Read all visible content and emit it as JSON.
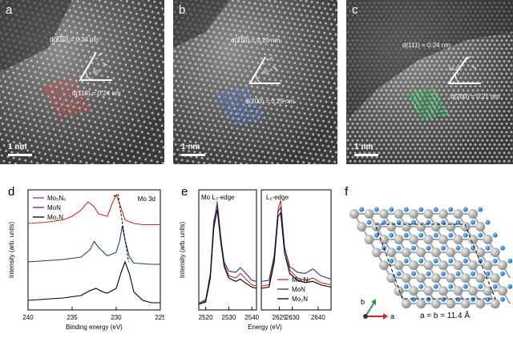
{
  "panels": {
    "a": {
      "label": "a",
      "d1": "d(2̅1̅0) = 0.24 nm",
      "d2": "d(110) = 0.24 nm",
      "angle": "60°",
      "scale": "1 nm",
      "color": "#ff3b3b"
    },
    "b": {
      "label": "b",
      "d1": "d(2̅1̅0) = 0.25 nm",
      "d2": "d(200) = 0.25 nm",
      "angle": "60°",
      "scale": "1 nm",
      "color": "#3f7fff"
    },
    "c": {
      "label": "c",
      "d1": "d(111) = 0.24 nm",
      "d2": "d(200) = 0.21 nm",
      "angle": "54.7°",
      "scale": "1 nm",
      "color": "#22dd66"
    },
    "d": {
      "label": "d"
    },
    "e": {
      "label": "e"
    },
    "f": {
      "label": "f"
    }
  },
  "chart_data": [
    {
      "type": "line",
      "panel": "d",
      "xlabel": "Binding energy (eV)",
      "ylabel": "Intensity (arb. units)",
      "xlim": [
        240,
        225
      ],
      "xticks": [
        240,
        235,
        230,
        225
      ],
      "annotation": "Mo 3d",
      "legend": [
        "Mo₅N₆",
        "MoN",
        "Mo₂N"
      ],
      "series": [
        {
          "name": "Mo₅N₆",
          "color": "#d62728",
          "x": [
            240,
            238,
            236,
            235,
            234,
            233.2,
            232.5,
            232,
            231,
            230.5,
            230,
            229.6,
            229,
            228,
            227,
            225
          ],
          "y": [
            0.72,
            0.73,
            0.75,
            0.78,
            0.83,
            0.9,
            0.86,
            0.8,
            0.78,
            0.88,
            0.96,
            0.88,
            0.75,
            0.72,
            0.71,
            0.71
          ]
        },
        {
          "name": "MoN",
          "color": "#1f3c88",
          "x": [
            240,
            238,
            236,
            234,
            233,
            232.5,
            232,
            231,
            230,
            229.6,
            229.3,
            229,
            228.5,
            228,
            226,
            225
          ],
          "y": [
            0.4,
            0.41,
            0.42,
            0.44,
            0.5,
            0.57,
            0.52,
            0.45,
            0.48,
            0.58,
            0.7,
            0.58,
            0.44,
            0.39,
            0.38,
            0.38
          ]
        },
        {
          "name": "Mo₂N",
          "color": "#000000",
          "x": [
            240,
            238,
            236,
            234,
            233,
            232.3,
            231.5,
            231,
            230,
            229.5,
            229,
            228.5,
            228,
            227,
            226,
            225
          ],
          "y": [
            0.08,
            0.09,
            0.1,
            0.12,
            0.16,
            0.18,
            0.15,
            0.14,
            0.18,
            0.3,
            0.4,
            0.3,
            0.15,
            0.08,
            0.06,
            0.06
          ]
        }
      ]
    },
    {
      "type": "line",
      "panel": "e",
      "xlabel": "Energy (eV)",
      "ylabel": "Intensity (arb. units)",
      "xticks_left": [
        2520,
        2530,
        2540
      ],
      "xticks_right": [
        2625,
        2630,
        2640
      ],
      "xlim_left": [
        2517,
        2542
      ],
      "xlim_right": [
        2618,
        2645
      ],
      "edge_left": "Mo L₃-edge",
      "edge_right": "L₂-edge",
      "legend": [
        "Mo₅N₆",
        "MoN",
        "Mo₂N"
      ],
      "series": [
        {
          "name": "Mo₅N₆",
          "color": "#d62728",
          "left": {
            "x": [
              2517,
              2520,
              2522,
              2523.5,
              2525,
              2526.5,
              2528,
              2530,
              2533,
              2535,
              2537,
              2540,
              2542
            ],
            "y": [
              0.05,
              0.08,
              0.3,
              0.75,
              0.95,
              0.65,
              0.4,
              0.3,
              0.28,
              0.32,
              0.28,
              0.22,
              0.21
            ]
          },
          "right": {
            "x": [
              2618,
              2621,
              2623,
              2624.5,
              2625.5,
              2627,
              2629,
              2632,
              2635,
              2638,
              2641,
              2645
            ],
            "y": [
              0.21,
              0.22,
              0.45,
              0.88,
              0.96,
              0.55,
              0.35,
              0.28,
              0.26,
              0.28,
              0.24,
              0.22
            ]
          }
        },
        {
          "name": "MoN",
          "color": "#1f3c88",
          "left": {
            "x": [
              2517,
              2520,
              2522,
              2523.5,
              2525,
              2526.5,
              2528,
              2530,
              2533,
              2535,
              2537,
              2540,
              2542
            ],
            "y": [
              0.06,
              0.09,
              0.32,
              0.78,
              0.92,
              0.62,
              0.42,
              0.34,
              0.33,
              0.37,
              0.33,
              0.26,
              0.25
            ]
          },
          "right": {
            "x": [
              2618,
              2621,
              2623,
              2624.5,
              2625.5,
              2627,
              2629,
              2632,
              2635,
              2638,
              2641,
              2645
            ],
            "y": [
              0.25,
              0.26,
              0.48,
              0.86,
              0.9,
              0.55,
              0.38,
              0.33,
              0.32,
              0.36,
              0.3,
              0.27
            ]
          }
        },
        {
          "name": "Mo₂N",
          "color": "#000000",
          "left": {
            "x": [
              2517,
              2520,
              2522,
              2523.5,
              2525,
              2526.5,
              2528,
              2530,
              2533,
              2535,
              2537,
              2540,
              2542
            ],
            "y": [
              0.05,
              0.07,
              0.28,
              0.72,
              0.88,
              0.6,
              0.38,
              0.28,
              0.25,
              0.27,
              0.24,
              0.2,
              0.19
            ]
          },
          "right": {
            "x": [
              2618,
              2621,
              2623,
              2624.5,
              2625.5,
              2627,
              2629,
              2632,
              2635,
              2638,
              2641,
              2645
            ],
            "y": [
              0.19,
              0.2,
              0.42,
              0.82,
              0.85,
              0.5,
              0.32,
              0.26,
              0.24,
              0.25,
              0.22,
              0.2
            ]
          }
        }
      ]
    }
  ],
  "structure": {
    "caption": "a = b = 11.4 Å",
    "axis_a": "a",
    "axis_b": "b"
  }
}
